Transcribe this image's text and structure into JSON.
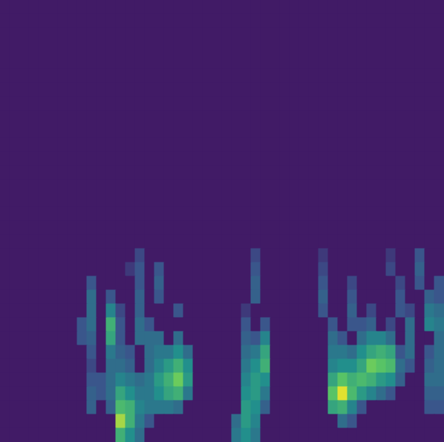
{
  "chart_data": {
    "type": "heatmap",
    "tick_labels": false,
    "color_range": [
      0,
      1
    ],
    "cells": [
      [
        0,
        0,
        0,
        0,
        0,
        0,
        0,
        0,
        0,
        0,
        0,
        0,
        0,
        0,
        0,
        0,
        0,
        0,
        0,
        0,
        0,
        0,
        0,
        0,
        0,
        0,
        0,
        0,
        0,
        0,
        0,
        0,
        0,
        0,
        0,
        0,
        0,
        0,
        0,
        0,
        0,
        0,
        0,
        0,
        0,
        0
      ],
      [
        0,
        0,
        0,
        0,
        0,
        0,
        0,
        0,
        0,
        0,
        0,
        0,
        0,
        0,
        0,
        0,
        0,
        0,
        0,
        0,
        0,
        0,
        0,
        0,
        0,
        0,
        0,
        0,
        0,
        0,
        0,
        0,
        0,
        0,
        0,
        0,
        0,
        0,
        0,
        0,
        0,
        0,
        0,
        0,
        0,
        0
      ],
      [
        0,
        0,
        0,
        0,
        0,
        0,
        0,
        0,
        0,
        0,
        0,
        0,
        0,
        0,
        0,
        0,
        0,
        0,
        0,
        0,
        0,
        0,
        0,
        0,
        0,
        0,
        0,
        0,
        0,
        0,
        0,
        0,
        0,
        0,
        0,
        0,
        0,
        0,
        0,
        0,
        0,
        0,
        0,
        0,
        0,
        0
      ],
      [
        0,
        0,
        0,
        0,
        0,
        0,
        0,
        0,
        0,
        0,
        0,
        0,
        0,
        0,
        0,
        0,
        0,
        0,
        0,
        0,
        0,
        0,
        0,
        0,
        0,
        0,
        0,
        0,
        0,
        0,
        0,
        0,
        0,
        0,
        0,
        0,
        0,
        0,
        0,
        0,
        0,
        0,
        0,
        0,
        0,
        0
      ],
      [
        0,
        0,
        0,
        0,
        0,
        0,
        0,
        0,
        0,
        0,
        0,
        0,
        0,
        0,
        0,
        0,
        0,
        0,
        0,
        0,
        0,
        0,
        0,
        0,
        0,
        0,
        0,
        0,
        0,
        0,
        0,
        0,
        0,
        0,
        0,
        0,
        0,
        0,
        0,
        0,
        0,
        0,
        0,
        0,
        0,
        0
      ],
      [
        0,
        0,
        0,
        0,
        0,
        0,
        0,
        0,
        0,
        0,
        0,
        0,
        0,
        0,
        0,
        0,
        0,
        0,
        0,
        0,
        0,
        0,
        0,
        0,
        0,
        0,
        0,
        0,
        0,
        0,
        0,
        0,
        0,
        0,
        0,
        0,
        0,
        0,
        0,
        0,
        0,
        0,
        0,
        0,
        0,
        0
      ],
      [
        0,
        0,
        0,
        0,
        0,
        0,
        0,
        0,
        0,
        0,
        0,
        0,
        0,
        0,
        0,
        0,
        0,
        0,
        0,
        0,
        0,
        0,
        0,
        0,
        0,
        0,
        0,
        0,
        0,
        0,
        0,
        0,
        0,
        0,
        0,
        0,
        0,
        0,
        0,
        0,
        0,
        0,
        0,
        0,
        0,
        0
      ],
      [
        0,
        0,
        0,
        0,
        0,
        0,
        0,
        0,
        0,
        0,
        0,
        0,
        0,
        0,
        0,
        0,
        0,
        0,
        0,
        0,
        0,
        0,
        0,
        0,
        0,
        0,
        0,
        0,
        0,
        0,
        0,
        0,
        0,
        0,
        0,
        0,
        0,
        0,
        0,
        0,
        0,
        0,
        0,
        0,
        0,
        0
      ],
      [
        0,
        0,
        0,
        0,
        0,
        0,
        0,
        0,
        0,
        0,
        0,
        0,
        0,
        0,
        0,
        0,
        0,
        0,
        0,
        0,
        0,
        0,
        0,
        0,
        0,
        0,
        0,
        0,
        0,
        0,
        0,
        0,
        0,
        0,
        0,
        0,
        0,
        0,
        0,
        0,
        0,
        0,
        0,
        0,
        0,
        0
      ],
      [
        0,
        0,
        0,
        0,
        0,
        0,
        0,
        0,
        0,
        0,
        0,
        0,
        0,
        0,
        0,
        0,
        0,
        0,
        0,
        0,
        0,
        0,
        0,
        0,
        0,
        0,
        0,
        0,
        0,
        0,
        0,
        0,
        0,
        0,
        0,
        0,
        0,
        0,
        0,
        0,
        0,
        0,
        0,
        0,
        0,
        0
      ],
      [
        0,
        0,
        0,
        0,
        0,
        0,
        0,
        0,
        0,
        0,
        0,
        0,
        0,
        0,
        0,
        0,
        0,
        0,
        0,
        0,
        0,
        0,
        0,
        0,
        0,
        0,
        0,
        0,
        0,
        0,
        0,
        0,
        0,
        0,
        0,
        0,
        0,
        0,
        0,
        0,
        0,
        0,
        0,
        0,
        0,
        0
      ],
      [
        0,
        0,
        0,
        0,
        0,
        0,
        0,
        0,
        0,
        0,
        0,
        0,
        0,
        0,
        0,
        0,
        0,
        0,
        0,
        0,
        0,
        0,
        0,
        0,
        0,
        0,
        0,
        0,
        0,
        0,
        0,
        0,
        0,
        0,
        0,
        0,
        0,
        0,
        0,
        0,
        0,
        0,
        0,
        0,
        0,
        0
      ],
      [
        0,
        0,
        0,
        0,
        0,
        0,
        0,
        0,
        0,
        0,
        0,
        0,
        0,
        0,
        0,
        0,
        0,
        0,
        0,
        0,
        0,
        0,
        0,
        0,
        0,
        0,
        0,
        0,
        0,
        0,
        0,
        0,
        0,
        0,
        0,
        0,
        0,
        0,
        0,
        0,
        0,
        0,
        0,
        0,
        0,
        0
      ],
      [
        0,
        0,
        0,
        0,
        0,
        0,
        0,
        0,
        0,
        0,
        0,
        0,
        0,
        0,
        0,
        0,
        0,
        0,
        0,
        0,
        0,
        0,
        0,
        0,
        0,
        0,
        0,
        0,
        0,
        0,
        0,
        0,
        0,
        0,
        0,
        0,
        0,
        0,
        0,
        0,
        0,
        0,
        0,
        0,
        0,
        0
      ],
      [
        0,
        0,
        0,
        0,
        0,
        0,
        0,
        0,
        0,
        0,
        0,
        0,
        0,
        0,
        0,
        0,
        0,
        0,
        0,
        0,
        0,
        0,
        0,
        0,
        0,
        0,
        0,
        0,
        0,
        0,
        0,
        0,
        0,
        0,
        0,
        0,
        0,
        0,
        0,
        0,
        0,
        0,
        0,
        0,
        0,
        0
      ],
      [
        0,
        0,
        0,
        0,
        0,
        0,
        0,
        0,
        0,
        0,
        0,
        0,
        0,
        0,
        0,
        0,
        0,
        0,
        0,
        0,
        0,
        0,
        0,
        0,
        0,
        0,
        0,
        0,
        0,
        0,
        0,
        0,
        0,
        0,
        0,
        0,
        0,
        0,
        0,
        0,
        0,
        0,
        0,
        0,
        0,
        0
      ],
      [
        0,
        0,
        0,
        0,
        0,
        0,
        0,
        0,
        0,
        0,
        0,
        0,
        0,
        0,
        0,
        0,
        0,
        0,
        0,
        0,
        0,
        0,
        0,
        0,
        0,
        0,
        0,
        0,
        0,
        0,
        0,
        0,
        0,
        0,
        0,
        0,
        0,
        0,
        0,
        0,
        0,
        0,
        0,
        0,
        0,
        0
      ],
      [
        0,
        0,
        0,
        0,
        0,
        0,
        0,
        0,
        0,
        0,
        0,
        0,
        0,
        0,
        0,
        0,
        0,
        0,
        0,
        0,
        0,
        0,
        0,
        0,
        0,
        0,
        0,
        0,
        0,
        0,
        0,
        0,
        0,
        0,
        0,
        0,
        0,
        0,
        0,
        0,
        0,
        0,
        0,
        0,
        0,
        0
      ],
      [
        0,
        0,
        0,
        0,
        0,
        0,
        0,
        0,
        0,
        0,
        0,
        0,
        0,
        0,
        0.15,
        0,
        0,
        0,
        0,
        0,
        0,
        0,
        0,
        0,
        0,
        0,
        0.15,
        0,
        0,
        0,
        0,
        0,
        0,
        0.1,
        0,
        0,
        0,
        0,
        0,
        0,
        0.1,
        0,
        0,
        0.2,
        0,
        0
      ],
      [
        0,
        0,
        0,
        0,
        0,
        0,
        0,
        0,
        0,
        0,
        0,
        0,
        0,
        0.1,
        0.2,
        0,
        0.2,
        0,
        0,
        0,
        0,
        0,
        0,
        0,
        0,
        0,
        0.2,
        0,
        0,
        0,
        0,
        0,
        0,
        0.15,
        0,
        0,
        0,
        0,
        0,
        0,
        0.15,
        0,
        0,
        0.25,
        0,
        0
      ],
      [
        0,
        0,
        0,
        0,
        0,
        0,
        0,
        0,
        0,
        0.2,
        0,
        0,
        0,
        0,
        0.2,
        0,
        0.25,
        0,
        0,
        0,
        0,
        0,
        0,
        0,
        0,
        0,
        0.25,
        0,
        0,
        0,
        0,
        0,
        0,
        0.2,
        0,
        0,
        0.15,
        0,
        0,
        0,
        0,
        0.15,
        0,
        0.2,
        0,
        0.2
      ],
      [
        0,
        0,
        0,
        0,
        0,
        0,
        0,
        0,
        0,
        0.3,
        0,
        0.2,
        0,
        0,
        0.25,
        0,
        0.2,
        0,
        0,
        0,
        0,
        0,
        0,
        0,
        0,
        0,
        0.25,
        0,
        0,
        0,
        0,
        0,
        0,
        0.25,
        0,
        0,
        0.2,
        0,
        0,
        0,
        0,
        0.2,
        0,
        0,
        0.25,
        0.2
      ],
      [
        0,
        0,
        0,
        0,
        0,
        0,
        0,
        0,
        0,
        0.3,
        0,
        0.4,
        0.15,
        0,
        0.25,
        0,
        0,
        0,
        0.2,
        0,
        0,
        0,
        0,
        0,
        0,
        0.1,
        0,
        0,
        0,
        0,
        0,
        0,
        0,
        0.2,
        0,
        0,
        0.25,
        0,
        0.15,
        0,
        0,
        0.2,
        0.15,
        0,
        0.35,
        0.3
      ],
      [
        0,
        0,
        0,
        0,
        0,
        0,
        0,
        0,
        0.2,
        0.3,
        0,
        0.6,
        0.2,
        0,
        0.3,
        0.2,
        0,
        0,
        0,
        0,
        0,
        0,
        0,
        0,
        0,
        0.2,
        0,
        0.2,
        0,
        0,
        0,
        0,
        0,
        0,
        0.2,
        0,
        0.2,
        0.2,
        0.25,
        0,
        0.15,
        0,
        0.3,
        0,
        0.4,
        0.35
      ],
      [
        0,
        0,
        0,
        0,
        0,
        0,
        0,
        0,
        0.2,
        0.25,
        0,
        0.55,
        0.2,
        0,
        0.3,
        0.3,
        0.3,
        0,
        0.3,
        0,
        0,
        0,
        0,
        0,
        0,
        0.25,
        0.2,
        0.4,
        0,
        0,
        0,
        0,
        0,
        0,
        0.3,
        0.2,
        0,
        0.3,
        0.4,
        0.4,
        0.3,
        0,
        0.3,
        0,
        0,
        0.3
      ],
      [
        0,
        0,
        0,
        0,
        0,
        0,
        0,
        0,
        0,
        0.2,
        0,
        0.35,
        0.25,
        0.2,
        0,
        0.3,
        0.35,
        0.35,
        0.45,
        0.3,
        0,
        0,
        0,
        0,
        0,
        0.3,
        0.35,
        0.55,
        0,
        0,
        0,
        0,
        0,
        0,
        0.35,
        0.35,
        0.3,
        0.45,
        0.55,
        0.6,
        0.55,
        0.2,
        0.3,
        0,
        0.2,
        0.3
      ],
      [
        0,
        0,
        0,
        0,
        0,
        0,
        0,
        0,
        0,
        0.15,
        0,
        0.3,
        0.3,
        0.25,
        0,
        0.3,
        0.4,
        0.5,
        0.6,
        0.45,
        0,
        0,
        0,
        0,
        0,
        0.35,
        0.45,
        0.6,
        0,
        0,
        0,
        0,
        0,
        0,
        0.4,
        0.45,
        0.45,
        0.55,
        0.75,
        0.7,
        0.65,
        0.3,
        0.2,
        0,
        0.25,
        0.3
      ],
      [
        0,
        0,
        0,
        0,
        0,
        0,
        0,
        0,
        0,
        0.2,
        0.2,
        0.3,
        0.4,
        0.35,
        0.3,
        0.35,
        0.5,
        0.6,
        0.75,
        0.5,
        0,
        0,
        0,
        0,
        0,
        0.4,
        0.5,
        0.45,
        0,
        0,
        0,
        0,
        0,
        0,
        0.55,
        0.7,
        0.6,
        0.65,
        0.6,
        0.5,
        0.45,
        0.25,
        0,
        0,
        0.3,
        0.3
      ],
      [
        0,
        0,
        0,
        0,
        0,
        0,
        0,
        0,
        0,
        0.25,
        0.2,
        0.3,
        0.55,
        0.45,
        0.35,
        0.35,
        0.45,
        0.55,
        0.6,
        0.35,
        0,
        0,
        0,
        0,
        0,
        0.45,
        0.5,
        0.35,
        0,
        0,
        0,
        0,
        0,
        0,
        0.7,
        0.95,
        0.65,
        0.5,
        0.4,
        0.3,
        0.2,
        0,
        0,
        0,
        0.25,
        0.25
      ],
      [
        0,
        0,
        0,
        0,
        0,
        0,
        0,
        0,
        0,
        0.25,
        0,
        0.25,
        0.65,
        0.6,
        0.4,
        0.35,
        0.35,
        0.35,
        0.3,
        0,
        0,
        0,
        0,
        0,
        0,
        0.5,
        0.45,
        0.25,
        0,
        0,
        0,
        0,
        0,
        0,
        0.55,
        0.6,
        0.4,
        0.2,
        0,
        0,
        0,
        0,
        0,
        0,
        0.2,
        0.2
      ],
      [
        0,
        0,
        0,
        0,
        0,
        0,
        0,
        0,
        0,
        0,
        0,
        0,
        0.85,
        0.6,
        0.35,
        0.2,
        0,
        0,
        0,
        0,
        0,
        0,
        0,
        0,
        0.3,
        0.5,
        0.4,
        0,
        0,
        0,
        0,
        0,
        0,
        0,
        0,
        0.3,
        0.2,
        0,
        0,
        0,
        0,
        0,
        0,
        0,
        0,
        0
      ],
      [
        0,
        0,
        0,
        0,
        0,
        0,
        0,
        0,
        0,
        0,
        0,
        0,
        0.6,
        0.45,
        0.3,
        0,
        0,
        0,
        0,
        0,
        0,
        0,
        0,
        0,
        0.35,
        0.45,
        0.35,
        0,
        0,
        0,
        0,
        0,
        0,
        0,
        0,
        0,
        0,
        0,
        0,
        0,
        0,
        0,
        0,
        0,
        0,
        0
      ]
    ]
  }
}
